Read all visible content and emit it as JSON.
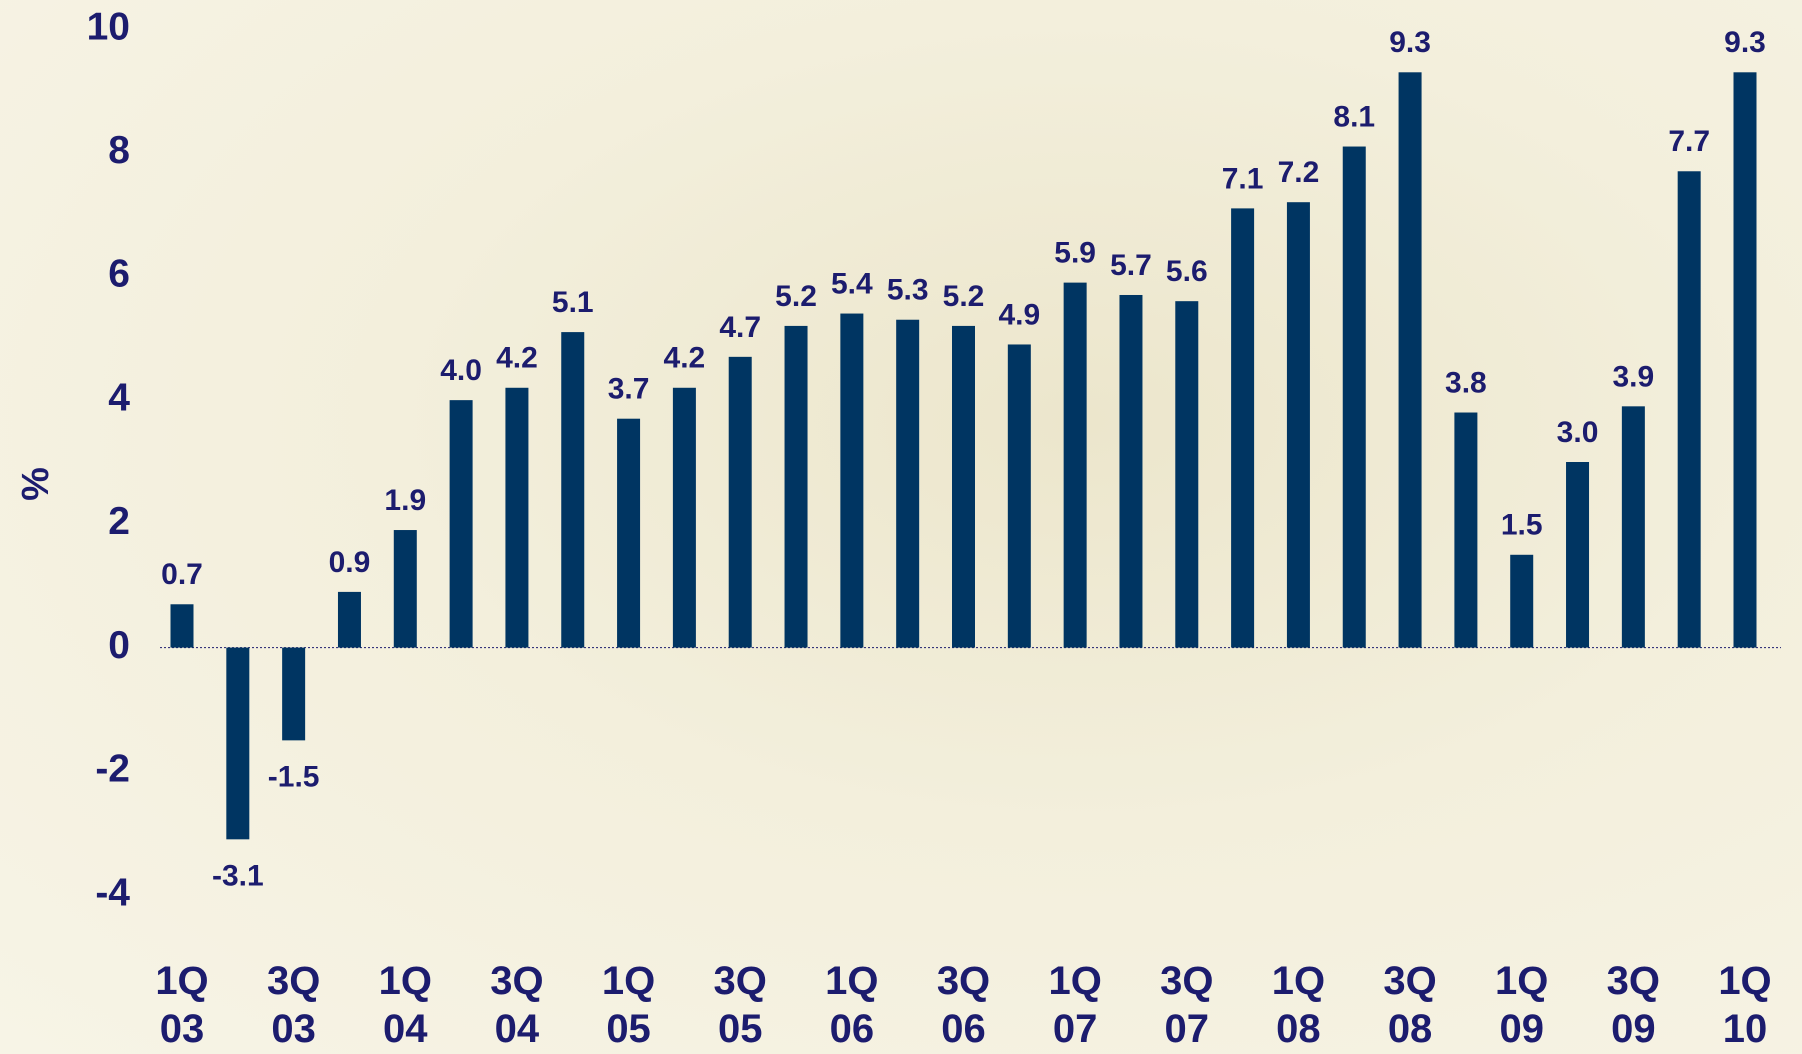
{
  "chart_data": {
    "type": "bar",
    "y_label": "%",
    "categories": [
      "1Q 03",
      null,
      "3Q 03",
      null,
      "1Q 04",
      null,
      "3Q 04",
      null,
      "1Q 05",
      null,
      "3Q 05",
      null,
      "1Q 06",
      null,
      "3Q 06",
      null,
      "1Q 07",
      null,
      "3Q 07",
      null,
      "1Q 08",
      null,
      "3Q 08",
      null,
      "1Q 09",
      null,
      "3Q 09",
      null,
      "1Q 10"
    ],
    "values": [
      0.7,
      -3.1,
      -1.5,
      0.9,
      1.9,
      4.0,
      4.2,
      5.1,
      3.7,
      4.2,
      4.7,
      5.2,
      5.4,
      5.3,
      5.2,
      4.9,
      5.9,
      5.7,
      5.6,
      7.1,
      7.2,
      8.1,
      9.3,
      3.8,
      1.5,
      3.0,
      3.9,
      7.7,
      9.3
    ],
    "value_labels": [
      "0.7",
      "-3.1",
      "-1.5",
      "0.9",
      "1.9",
      "4.0",
      "4.2",
      "5.1",
      "3.7",
      "4.2",
      "4.7",
      "5.2",
      "5.4",
      "5.3",
      "5.2",
      "4.9",
      "5.9",
      "5.7",
      "5.6",
      "7.1",
      "7.2",
      "8.1",
      "9.3",
      "3.8",
      "1.5",
      "3.0",
      "3.9",
      "7.7",
      "9.3"
    ],
    "color": "#003562",
    "ylim": [
      -4,
      10
    ],
    "yticks": [
      -4,
      -2,
      0,
      2,
      4,
      6,
      8,
      10
    ],
    "grid": false
  }
}
